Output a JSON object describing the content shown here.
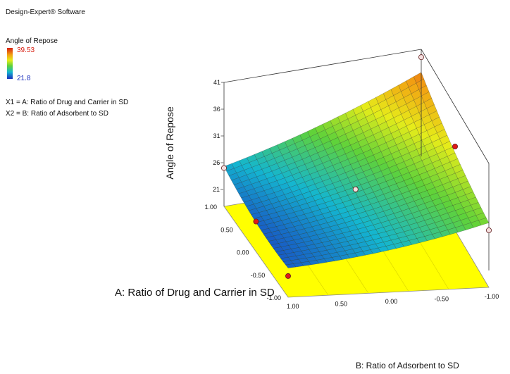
{
  "header": {
    "software": "Design-Expert® Software"
  },
  "legend": {
    "title": "Angle of Repose",
    "max_label": "39.53",
    "min_label": "21.8",
    "max_color": "#d81e10",
    "min_color": "#1a2fbe"
  },
  "factors": {
    "x1": "X1 = A: Ratio of  Drug and Carrier in SD",
    "x2": "X2 = B: Ratio of Adsorbent to SD"
  },
  "chart_data": {
    "type": "surface-3d",
    "zlabel": "Angle of Repose",
    "xlabel": "A: Ratio of  Drug and Carrier in SD",
    "ylabel": "B: Ratio of Adsorbent to SD",
    "z_ticks": [
      "41",
      "36",
      "31",
      "26",
      "21"
    ],
    "a_ticks": [
      "1.00",
      "0.50",
      "0.00",
      "-0.50",
      "-1.00"
    ],
    "b_ticks": [
      "1.00",
      "0.50",
      "0.00",
      "-0.50",
      "-1.00"
    ],
    "zlim": [
      21,
      41
    ],
    "a_range": [
      -1,
      1
    ],
    "b_range": [
      -1,
      1
    ],
    "colorscale_range": [
      21.8,
      39.53
    ],
    "base_plane_color": "#ffff00",
    "points": [
      {
        "a": -1,
        "b": 1,
        "z": 21.8,
        "position": "above-surface"
      },
      {
        "a": 0,
        "b": 0,
        "z": 27.5,
        "position": "below-surface"
      },
      {
        "a": 0,
        "b": 1,
        "z": 23.5,
        "position": "above-surface"
      },
      {
        "a": 1,
        "b": -1,
        "z": 39.53,
        "position": "below-surface"
      },
      {
        "a": 0,
        "b": -1,
        "z": 33.5,
        "position": "above-surface"
      },
      {
        "a": -1,
        "b": -1,
        "z": 28.5,
        "position": "below-surface"
      },
      {
        "a": 1,
        "b": 1,
        "z": 25.0,
        "position": "below-surface"
      }
    ]
  }
}
